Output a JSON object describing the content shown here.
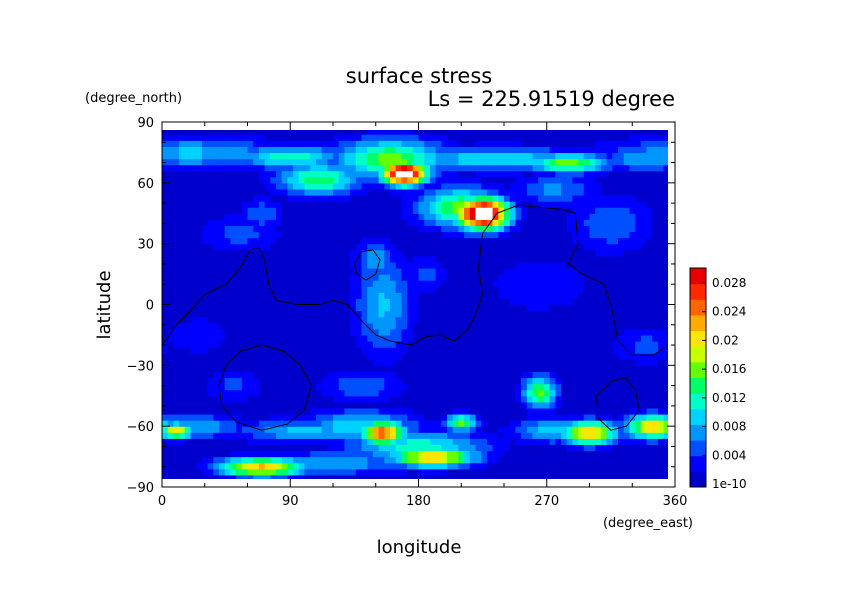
{
  "chart_data": {
    "type": "heatmap",
    "title": "surface stress",
    "subtitle": "Ls = 225.91519 degree",
    "xlabel": "longitude",
    "ylabel": "latitude",
    "x_unit": "(degree_east)",
    "y_unit": "(degree_north)",
    "xlim": [
      0,
      360
    ],
    "ylim": [
      -90,
      90
    ],
    "x_ticks": [
      "0",
      "90",
      "180",
      "270",
      "360"
    ],
    "y_ticks": [
      "90",
      "60",
      "30",
      "0",
      "−30",
      "−60",
      "−90"
    ],
    "colorbar": {
      "labels": [
        "0.028",
        "0.024",
        "0.02",
        "0.016",
        "0.012",
        "0.008",
        "0.004",
        "1e-10"
      ],
      "min": 0,
      "max": 0.03,
      "colors": [
        "#0000cc",
        "#0000ff",
        "#0050ff",
        "#0096ff",
        "#00d2ff",
        "#00ffc8",
        "#00ff64",
        "#64ff00",
        "#c8ff00",
        "#ffe600",
        "#ffaa00",
        "#ff6400",
        "#ff2800",
        "#e60000"
      ]
    },
    "background_value": 0.0012,
    "features": [
      {
        "lon": 20,
        "lat": 75,
        "value": 0.009,
        "rlon": 70,
        "rlat": 8
      },
      {
        "lon": 90,
        "lat": 73,
        "value": 0.012,
        "rlon": 40,
        "rlat": 6
      },
      {
        "lon": 170,
        "lat": 65,
        "value": 0.035,
        "rlon": 16,
        "rlat": 6
      },
      {
        "lon": 160,
        "lat": 72,
        "value": 0.016,
        "rlon": 40,
        "rlat": 10
      },
      {
        "lon": 110,
        "lat": 62,
        "value": 0.014,
        "rlon": 30,
        "rlat": 8
      },
      {
        "lon": 235,
        "lat": 72,
        "value": 0.011,
        "rlon": 60,
        "rlat": 6
      },
      {
        "lon": 285,
        "lat": 70,
        "value": 0.016,
        "rlon": 30,
        "rlat": 5
      },
      {
        "lon": 340,
        "lat": 72,
        "value": 0.009,
        "rlon": 30,
        "rlat": 6
      },
      {
        "lon": 225,
        "lat": 45,
        "value": 0.036,
        "rlon": 18,
        "rlat": 8
      },
      {
        "lon": 210,
        "lat": 48,
        "value": 0.016,
        "rlon": 30,
        "rlat": 10
      },
      {
        "lon": 275,
        "lat": 57,
        "value": 0.007,
        "rlon": 30,
        "rlat": 8
      },
      {
        "lon": 70,
        "lat": 45,
        "value": 0.006,
        "rlon": 15,
        "rlat": 8
      },
      {
        "lon": 150,
        "lat": 22,
        "value": 0.008,
        "rlon": 15,
        "rlat": 10
      },
      {
        "lon": 155,
        "lat": 0,
        "value": 0.009,
        "rlon": 20,
        "rlat": 25
      },
      {
        "lon": 185,
        "lat": 15,
        "value": 0.005,
        "rlon": 15,
        "rlat": 10
      },
      {
        "lon": 55,
        "lat": 35,
        "value": 0.005,
        "rlon": 30,
        "rlat": 10
      },
      {
        "lon": 315,
        "lat": 40,
        "value": 0.006,
        "rlon": 30,
        "rlat": 15
      },
      {
        "lon": 265,
        "lat": 10,
        "value": 0.004,
        "rlon": 40,
        "rlat": 15
      },
      {
        "lon": 25,
        "lat": -15,
        "value": 0.004,
        "rlon": 25,
        "rlat": 10
      },
      {
        "lon": 340,
        "lat": -20,
        "value": 0.005,
        "rlon": 25,
        "rlat": 10
      },
      {
        "lon": 140,
        "lat": -40,
        "value": 0.006,
        "rlon": 30,
        "rlat": 8
      },
      {
        "lon": 265,
        "lat": -43,
        "value": 0.016,
        "rlon": 12,
        "rlat": 8
      },
      {
        "lon": 50,
        "lat": -40,
        "value": 0.005,
        "rlon": 20,
        "rlat": 8
      },
      {
        "lon": 20,
        "lat": -60,
        "value": 0.009,
        "rlon": 40,
        "rlat": 6
      },
      {
        "lon": 10,
        "lat": -62,
        "value": 0.02,
        "rlon": 12,
        "rlat": 4
      },
      {
        "lon": 100,
        "lat": -62,
        "value": 0.009,
        "rlon": 50,
        "rlat": 6
      },
      {
        "lon": 155,
        "lat": -63,
        "value": 0.026,
        "rlon": 15,
        "rlat": 6
      },
      {
        "lon": 140,
        "lat": -60,
        "value": 0.011,
        "rlon": 40,
        "rlat": 8
      },
      {
        "lon": 210,
        "lat": -58,
        "value": 0.016,
        "rlon": 12,
        "rlat": 4
      },
      {
        "lon": 275,
        "lat": -62,
        "value": 0.01,
        "rlon": 30,
        "rlat": 6
      },
      {
        "lon": 300,
        "lat": -63,
        "value": 0.022,
        "rlon": 20,
        "rlat": 6
      },
      {
        "lon": 345,
        "lat": -60,
        "value": 0.021,
        "rlon": 20,
        "rlat": 6
      },
      {
        "lon": 190,
        "lat": -75,
        "value": 0.022,
        "rlon": 30,
        "rlat": 5
      },
      {
        "lon": 70,
        "lat": -80,
        "value": 0.022,
        "rlon": 30,
        "rlat": 5
      },
      {
        "lon": 180,
        "lat": -70,
        "value": 0.012,
        "rlon": 50,
        "rlat": 8
      },
      {
        "lon": 120,
        "lat": -78,
        "value": 0.008,
        "rlon": 60,
        "rlat": 6
      }
    ],
    "contours": [
      [
        [
          0,
          -20
        ],
        [
          10,
          -10
        ],
        [
          20,
          -3
        ],
        [
          30,
          5
        ],
        [
          45,
          10
        ],
        [
          55,
          18
        ],
        [
          62,
          27
        ],
        [
          68,
          28
        ],
        [
          72,
          22
        ],
        [
          75,
          10
        ],
        [
          80,
          2
        ],
        [
          95,
          0
        ],
        [
          110,
          0
        ],
        [
          120,
          2
        ],
        [
          130,
          0
        ],
        [
          140,
          -8
        ],
        [
          150,
          -15
        ],
        [
          160,
          -18
        ],
        [
          175,
          -20
        ],
        [
          185,
          -16
        ],
        [
          195,
          -15
        ],
        [
          205,
          -18
        ],
        [
          215,
          -12
        ],
        [
          220,
          -5
        ],
        [
          225,
          5
        ],
        [
          222,
          18
        ],
        [
          225,
          35
        ],
        [
          235,
          45
        ],
        [
          250,
          49
        ],
        [
          265,
          48
        ],
        [
          280,
          47
        ],
        [
          290,
          45
        ],
        [
          292,
          30
        ],
        [
          285,
          20
        ],
        [
          295,
          15
        ],
        [
          310,
          10
        ],
        [
          315,
          0
        ],
        [
          318,
          -10
        ],
        [
          320,
          -18
        ],
        [
          330,
          -25
        ],
        [
          345,
          -25
        ],
        [
          355,
          -20
        ],
        [
          360,
          -20
        ]
      ],
      [
        [
          135,
          20
        ],
        [
          140,
          26
        ],
        [
          148,
          27
        ],
        [
          153,
          22
        ],
        [
          150,
          15
        ],
        [
          143,
          12
        ],
        [
          137,
          15
        ],
        [
          135,
          20
        ]
      ],
      [
        [
          40,
          -40
        ],
        [
          45,
          -30
        ],
        [
          55,
          -23
        ],
        [
          70,
          -20
        ],
        [
          85,
          -23
        ],
        [
          97,
          -30
        ],
        [
          105,
          -40
        ],
        [
          100,
          -52
        ],
        [
          88,
          -59
        ],
        [
          70,
          -62
        ],
        [
          52,
          -58
        ],
        [
          42,
          -50
        ],
        [
          40,
          -40
        ]
      ],
      [
        [
          305,
          -45
        ],
        [
          315,
          -38
        ],
        [
          325,
          -36
        ],
        [
          332,
          -42
        ],
        [
          335,
          -52
        ],
        [
          326,
          -60
        ],
        [
          315,
          -62
        ],
        [
          306,
          -56
        ],
        [
          305,
          -45
        ]
      ]
    ]
  }
}
